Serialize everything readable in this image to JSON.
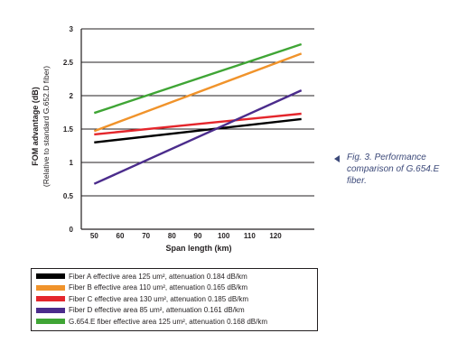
{
  "chart_data": {
    "type": "line",
    "xlabel": "Span length (km)",
    "ylabel": "FOM advantage (dB)",
    "ylabel_sub": "(Relative to standard G.652.D fiber)",
    "x_ticks": [
      "50",
      "60",
      "70",
      "80",
      "90",
      "100",
      "110",
      "120"
    ],
    "y_ticks": [
      "0",
      "0.5",
      "1",
      "1.5",
      "2",
      "2.5",
      "3"
    ],
    "xlim": [
      45,
      135
    ],
    "ylim": [
      0,
      3
    ],
    "grid": true,
    "legend_placement": "bottom",
    "series": [
      {
        "name": "Fiber A effective area 125 um², attenuation 0.184 dB/km",
        "color": "#000000",
        "x": [
          50,
          130
        ],
        "y": [
          1.3,
          1.65
        ]
      },
      {
        "name": "Fiber B effective area 110 um², attenuation 0.165 dB/km",
        "color": "#f0932b",
        "x": [
          50,
          130
        ],
        "y": [
          1.47,
          2.63
        ]
      },
      {
        "name": "Fiber C effective area 130 um², attenuation 0.185 dB/km",
        "color": "#e4262c",
        "x": [
          50,
          130
        ],
        "y": [
          1.42,
          1.73
        ]
      },
      {
        "name": "Fiber D effective area 85 um², attenuation 0.161 dB/km",
        "color": "#4b2c8c",
        "x": [
          50,
          130
        ],
        "y": [
          0.68,
          2.08
        ]
      },
      {
        "name": "G.654.E fiber effective area 125 um², attenuation 0.168 dB/km",
        "color": "#3fa535",
        "x": [
          50,
          130
        ],
        "y": [
          1.74,
          2.77
        ]
      }
    ]
  },
  "caption": "Fig. 3. Performance comparison of G.654.E fiber."
}
